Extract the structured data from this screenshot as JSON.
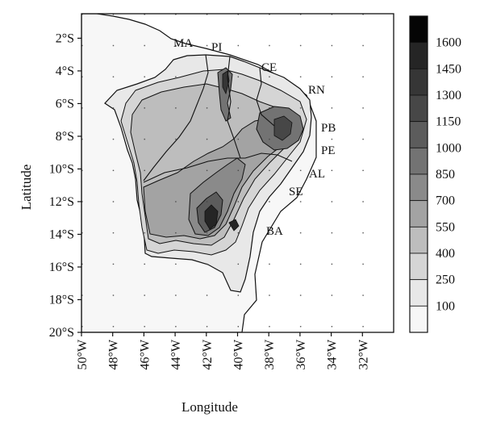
{
  "map": {
    "xlabel": "Longitude",
    "ylabel": "Latitude",
    "lon_ticks": [
      "50°W",
      "48°W",
      "46°W",
      "44°W",
      "42°W",
      "40°W",
      "38°W",
      "36°W",
      "34°W",
      "32°W"
    ],
    "lat_ticks": [
      "2°S",
      "4°S",
      "6°S",
      "8°S",
      "10°S",
      "12°S",
      "14°S",
      "16°S",
      "18°S",
      "20°S"
    ],
    "lon_range": [
      -50,
      -30
    ],
    "lat_range": [
      -20,
      -0.5
    ],
    "state_labels": [
      "MA",
      "PI",
      "CE",
      "RN",
      "PB",
      "PE",
      "AL",
      "SE",
      "BA"
    ],
    "grid": "dotted",
    "colorbar": {
      "levels": [
        "1600",
        "1450",
        "1300",
        "1150",
        "1000",
        "850",
        "700",
        "550",
        "400",
        "250",
        "100"
      ],
      "colors": [
        "#050505",
        "#252525",
        "#363636",
        "#474747",
        "#5c5c5c",
        "#737373",
        "#8a8a8a",
        "#a3a3a3",
        "#bdbdbd",
        "#d5d5d5",
        "#e8e8e8",
        "#f7f7f7"
      ]
    }
  }
}
